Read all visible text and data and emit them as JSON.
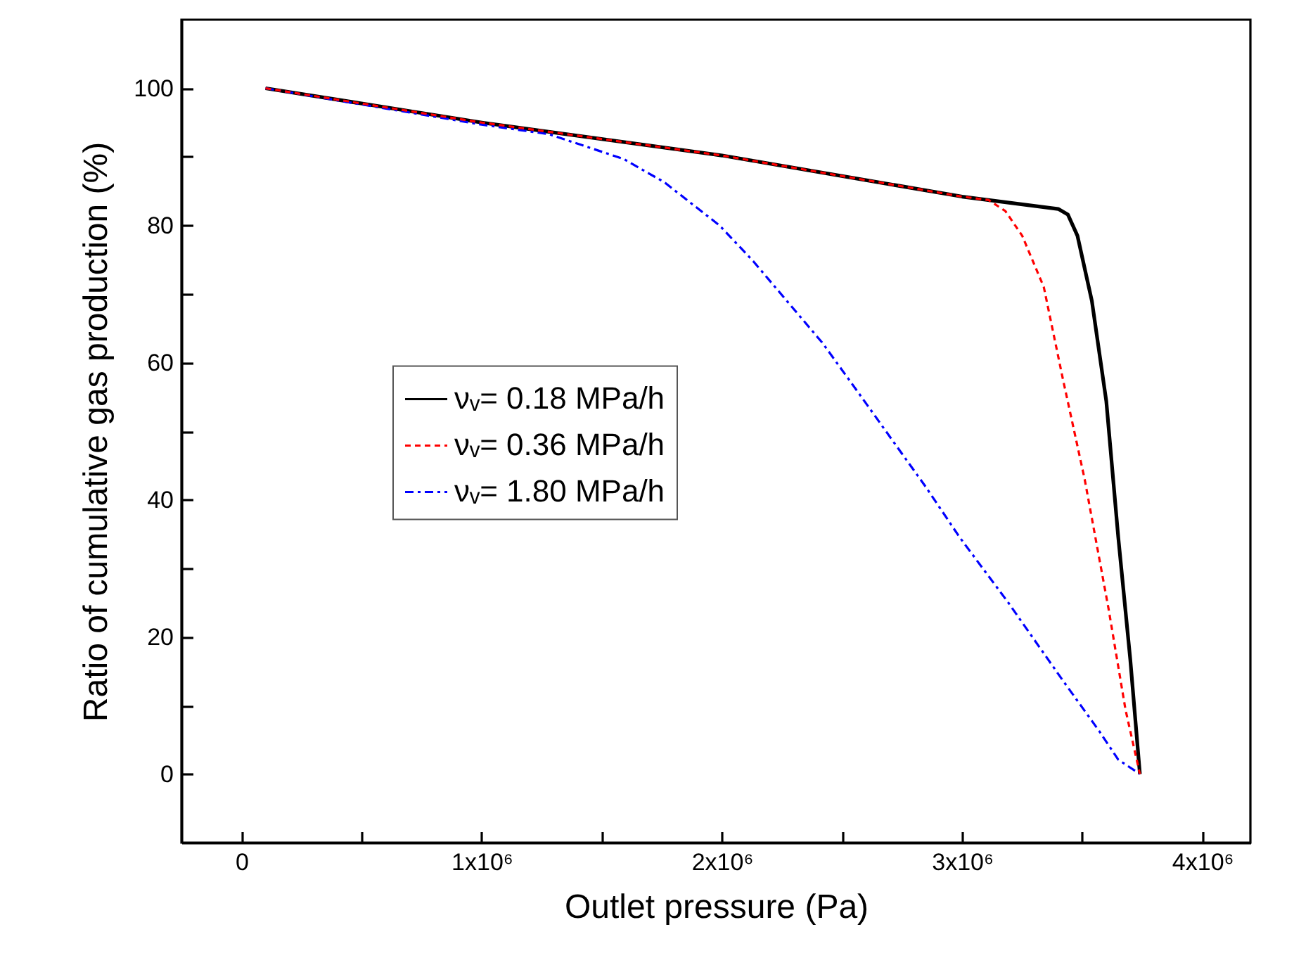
{
  "chart_data": {
    "type": "line",
    "xlabel": "Outlet pressure (Pa)",
    "ylabel": "Ratio of cumulative gas production (%)",
    "xlim": [
      -250000,
      4200000
    ],
    "ylim": [
      -10,
      110
    ],
    "xticks": [
      0,
      {
        "value": 500000,
        "label": null
      },
      {
        "value": 1000000,
        "label": "1x10⁶"
      },
      {
        "value": 1500000,
        "label": null
      },
      {
        "value": 2000000,
        "label": "2x10⁶"
      },
      {
        "value": 2500000,
        "label": null
      },
      {
        "value": 3000000,
        "label": "3x10⁶"
      },
      {
        "value": 3500000,
        "label": null
      },
      {
        "value": 4000000,
        "label": "4x10⁶"
      }
    ],
    "yticks": [
      0,
      {
        "value": 10,
        "label": null
      },
      20,
      {
        "value": 30,
        "label": null
      },
      40,
      {
        "value": 50,
        "label": null
      },
      60,
      {
        "value": 70,
        "label": null
      },
      80,
      {
        "value": 90,
        "label": null
      },
      100
    ],
    "grid": false,
    "legend": "center left",
    "marker": "none",
    "series": [
      {
        "name": "νᵥ= 0.18 MPa/h",
        "color": "#000000",
        "line_style": "solid",
        "x": [
          100000,
          1000000,
          2000000,
          3000000,
          3400000,
          3440000,
          3480000,
          3540000,
          3600000,
          3650000,
          3700000,
          3740000
        ],
        "values": [
          100,
          95,
          90.2,
          84.2,
          82.4,
          81.6,
          78.5,
          69,
          54.4,
          34.5,
          16.7,
          0
        ]
      },
      {
        "name": "νᵥ= 0.36 MPa/h",
        "color": "#ff0000",
        "line_style": "dashed",
        "x": [
          100000,
          1000000,
          2000000,
          3000000,
          3110000,
          3180000,
          3250000,
          3340000,
          3420000,
          3510000,
          3610000,
          3680000,
          3740000
        ],
        "values": [
          100,
          95,
          90.2,
          84.2,
          83.7,
          82.1,
          78.5,
          71,
          57.5,
          43,
          24,
          9.4,
          0
        ]
      },
      {
        "name": "νᵥ= 1.80 MPa/h",
        "color": "#0000ff",
        "line_style": "dotted",
        "x": [
          100000,
          1000000,
          1280000,
          1590000,
          1760000,
          1990000,
          2130000,
          2420000,
          2560000,
          2850000,
          2990000,
          3190000,
          3420000,
          3570000,
          3650000,
          3740000
        ],
        "values": [
          100,
          94.7,
          93.3,
          89.7,
          86.3,
          80,
          74.8,
          62.8,
          56,
          41.8,
          34.5,
          25.1,
          13.6,
          6.3,
          2.1,
          0
        ]
      }
    ]
  }
}
